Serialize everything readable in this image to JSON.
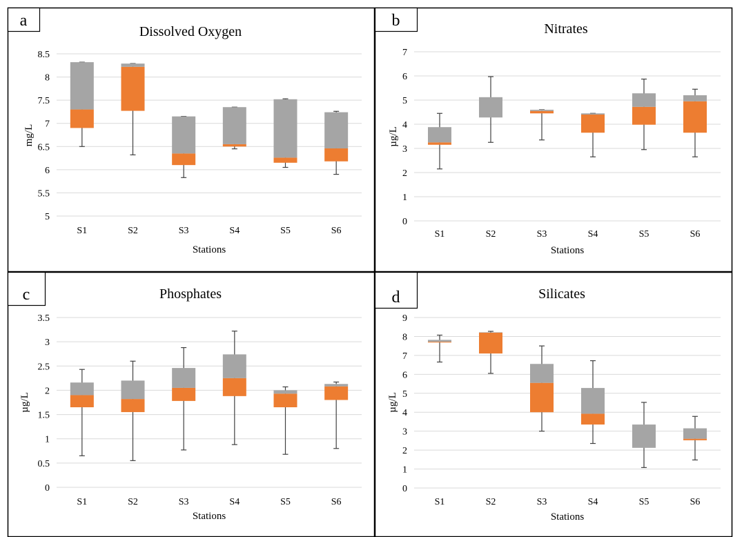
{
  "figure": {
    "colors": {
      "box_upper": "#a5a5a5",
      "box_lower": "#ed7d31",
      "whisker": "#404040",
      "grid": "#d9d9d9",
      "border": "#000000"
    }
  },
  "chart_data": [
    {
      "type": "boxplot",
      "panel_label": "a",
      "title": "Dissolved Oxygen",
      "xlabel": "Stations",
      "ylabel": "mg/L",
      "categories": [
        "S1",
        "S2",
        "S3",
        "S4",
        "S5",
        "S6"
      ],
      "ylim": [
        5,
        8.5
      ],
      "yticks": [
        5,
        5.5,
        6,
        6.5,
        7,
        7.5,
        8,
        8.5
      ],
      "ytick_labels": [
        "5",
        "5.5",
        "6",
        "6.5",
        "7",
        "7.5",
        "8",
        "8.5"
      ],
      "min": [
        6.5,
        6.32,
        5.83,
        6.45,
        6.05,
        5.9
      ],
      "q1": [
        6.9,
        7.27,
        6.1,
        6.5,
        6.15,
        6.18
      ],
      "median": [
        7.3,
        8.22,
        6.35,
        6.55,
        6.26,
        6.46
      ],
      "q3": [
        8.32,
        8.29,
        7.15,
        7.35,
        7.52,
        7.24
      ],
      "max": [
        8.32,
        8.29,
        7.15,
        7.35,
        7.53,
        7.26
      ]
    },
    {
      "type": "boxplot",
      "panel_label": "b",
      "title": "Nitrates",
      "xlabel": "Stations",
      "ylabel": "µg/L",
      "categories": [
        "S1",
        "S2",
        "S3",
        "S4",
        "S5",
        "S6"
      ],
      "ylim": [
        0,
        7
      ],
      "yticks": [
        0,
        1,
        2,
        3,
        4,
        5,
        6,
        7
      ],
      "ytick_labels": [
        "0",
        "1",
        "2",
        "3",
        "4",
        "5",
        "6",
        "7"
      ],
      "min": [
        2.15,
        3.25,
        3.35,
        2.65,
        2.95,
        2.65
      ],
      "q1": [
        3.15,
        4.28,
        4.45,
        3.65,
        3.98,
        3.65
      ],
      "median": [
        3.25,
        4.28,
        4.55,
        4.4,
        4.72,
        4.95
      ],
      "q3": [
        3.88,
        5.12,
        4.6,
        4.45,
        5.28,
        5.2
      ],
      "max": [
        4.45,
        5.97,
        4.6,
        4.45,
        5.87,
        5.45
      ]
    },
    {
      "type": "boxplot",
      "panel_label": "c",
      "title": "Phosphates",
      "xlabel": "Stations",
      "ylabel": "µg/L",
      "categories": [
        "S1",
        "S2",
        "S3",
        "S4",
        "S5",
        "S6"
      ],
      "ylim": [
        0,
        3.5
      ],
      "yticks": [
        0,
        0.5,
        1,
        1.5,
        2,
        2.5,
        3,
        3.5
      ],
      "ytick_labels": [
        "0",
        "0.5",
        "1",
        "1.5",
        "2",
        "2.5",
        "3",
        "3.5"
      ],
      "min": [
        0.65,
        0.55,
        0.77,
        0.88,
        0.68,
        0.8
      ],
      "q1": [
        1.65,
        1.55,
        1.78,
        1.88,
        1.65,
        1.8
      ],
      "median": [
        1.9,
        1.82,
        2.05,
        2.25,
        1.93,
        2.08
      ],
      "q3": [
        2.16,
        2.2,
        2.46,
        2.74,
        2.0,
        2.13
      ],
      "max": [
        2.43,
        2.6,
        2.88,
        3.22,
        2.07,
        2.17
      ]
    },
    {
      "type": "boxplot",
      "panel_label": "d",
      "title": "Silicates",
      "xlabel": "Stations",
      "ylabel": "µg/L",
      "categories": [
        "S1",
        "S2",
        "S3",
        "S4",
        "S5",
        "S6"
      ],
      "ylim": [
        0,
        9
      ],
      "yticks": [
        0,
        1,
        2,
        3,
        4,
        5,
        6,
        7,
        8,
        9
      ],
      "ytick_labels": [
        "0",
        "1",
        "2",
        "3",
        "4",
        "5",
        "6",
        "7",
        "8",
        "9"
      ],
      "min": [
        6.65,
        6.05,
        3.0,
        2.35,
        1.08,
        1.48
      ],
      "q1": [
        7.68,
        7.1,
        4.0,
        3.35,
        2.12,
        2.52
      ],
      "median": [
        7.72,
        8.2,
        5.55,
        3.92,
        2.12,
        2.6
      ],
      "q3": [
        7.82,
        8.22,
        6.55,
        5.28,
        3.35,
        3.15
      ],
      "max": [
        8.07,
        8.27,
        7.5,
        6.72,
        4.52,
        3.78
      ]
    }
  ]
}
